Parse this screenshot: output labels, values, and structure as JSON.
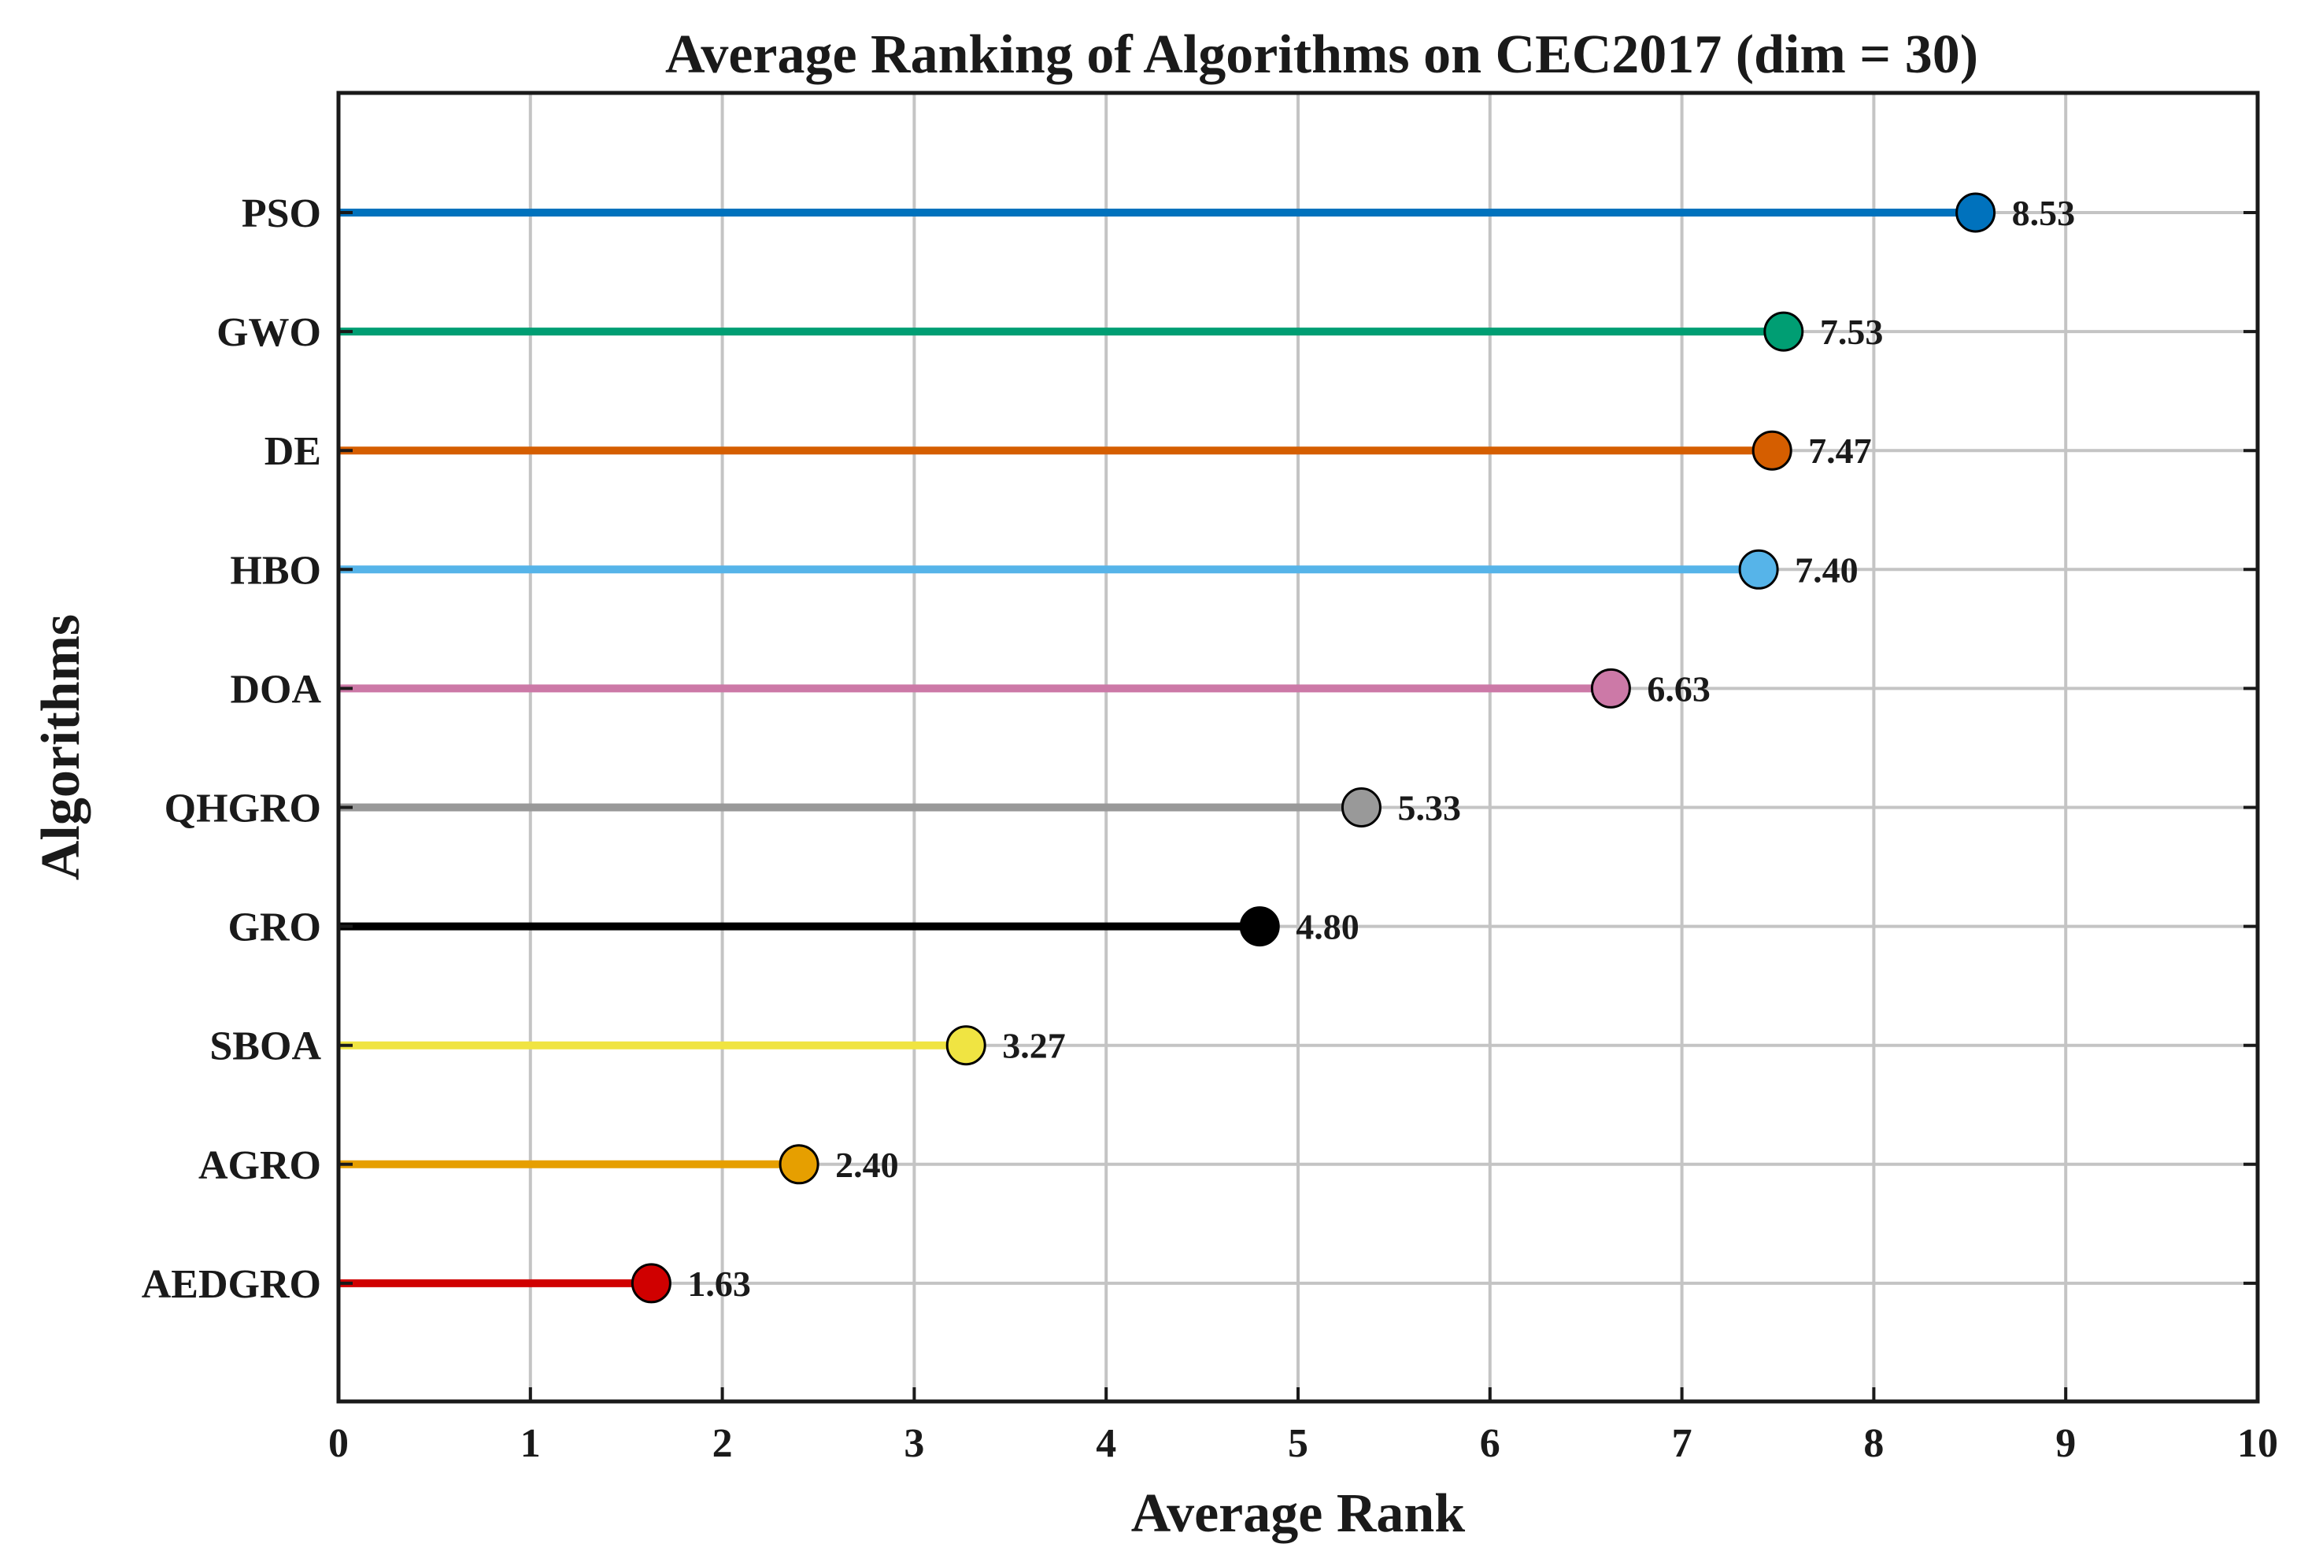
{
  "chart_data": {
    "type": "lollipop",
    "title": "Average Ranking of Algorithms on CEC2017 (dim = 30)",
    "xlabel": "Average Rank",
    "ylabel": "Algorithms",
    "xlim": [
      0,
      10
    ],
    "xticks": [
      0,
      1,
      2,
      3,
      4,
      5,
      6,
      7,
      8,
      9,
      10
    ],
    "grid": true,
    "categories": [
      "PSO",
      "GWO",
      "DE",
      "HBO",
      "DOA",
      "QHGRO",
      "GRO",
      "SBOA",
      "AGRO",
      "AEDGRO"
    ],
    "values": [
      8.53,
      7.53,
      7.47,
      7.4,
      6.63,
      5.33,
      4.8,
      3.27,
      2.4,
      1.63
    ],
    "value_labels": [
      "8.53",
      "7.53",
      "7.47",
      "7.40",
      "6.63",
      "5.33",
      "4.80",
      "3.27",
      "2.40",
      "1.63"
    ],
    "colors": [
      "#0072BD",
      "#009E73",
      "#D55E00",
      "#56B4E9",
      "#CC79A7",
      "#999999",
      "#000000",
      "#F0E442",
      "#E69F00",
      "#D00000"
    ]
  }
}
